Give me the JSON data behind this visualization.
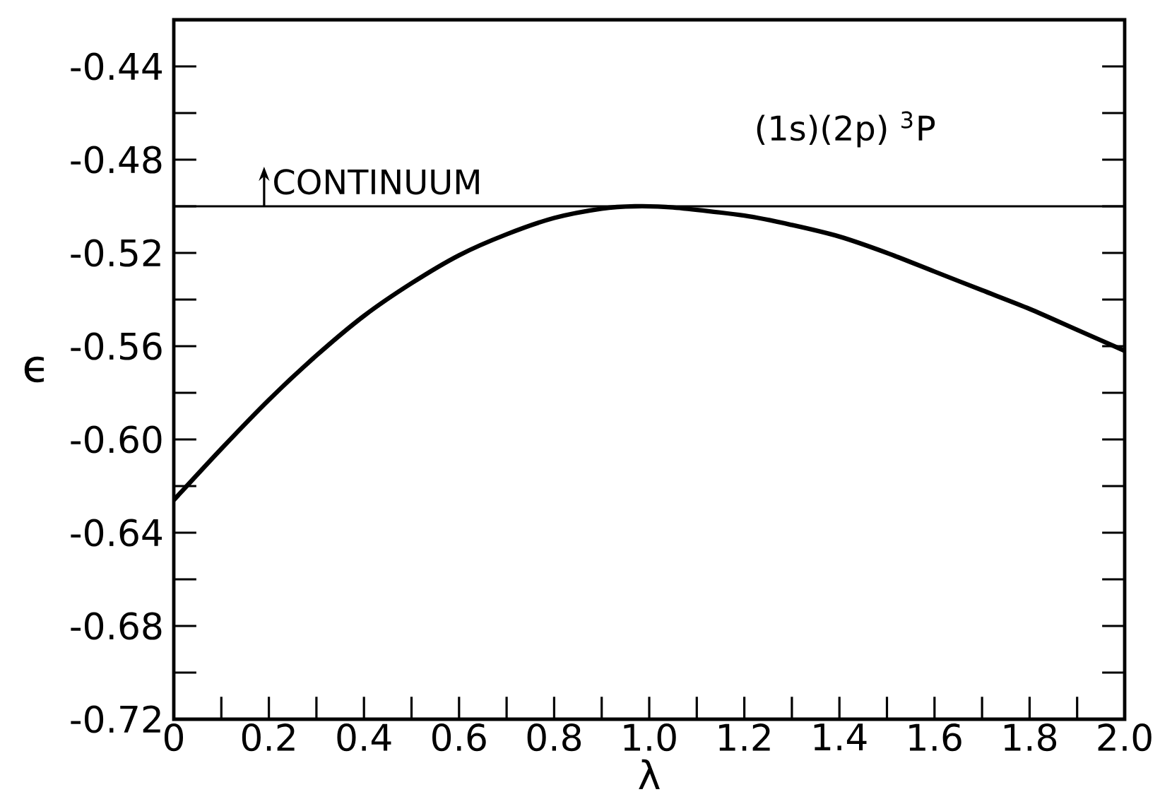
{
  "chart_data": {
    "type": "line",
    "xlabel": "λ",
    "ylabel": "ϵ",
    "x": [
      0,
      0.1,
      0.2,
      0.3,
      0.4,
      0.5,
      0.6,
      0.7,
      0.8,
      0.9,
      0.97,
      1.05,
      1.2,
      1.3,
      1.4,
      1.5,
      1.6,
      1.7,
      1.8,
      1.9,
      2.0
    ],
    "series": [
      {
        "color": "#000000",
        "values": [
          -0.626,
          -0.604,
          -0.583,
          -0.564,
          -0.547,
          -0.533,
          -0.521,
          -0.512,
          -0.505,
          -0.501,
          -0.5,
          -0.5005,
          -0.504,
          -0.508,
          -0.513,
          -0.52,
          -0.528,
          -0.536,
          -0.544,
          -0.553,
          -0.562
        ]
      }
    ],
    "xlim": [
      0,
      2.0
    ],
    "ylim": [
      -0.72,
      -0.42
    ],
    "xticks": [
      0,
      {
        "value": 0.1,
        "label": null
      },
      0.2,
      {
        "value": 0.3,
        "label": null
      },
      0.4,
      {
        "value": 0.5,
        "label": null
      },
      0.6,
      {
        "value": 0.7,
        "label": null
      },
      0.8,
      {
        "value": 0.9,
        "label": null
      },
      {
        "value": 1,
        "label": "1.0"
      },
      {
        "value": 1.1,
        "label": null
      },
      1.2,
      {
        "value": 1.3,
        "label": null
      },
      1.4,
      {
        "value": 1.5,
        "label": null
      },
      1.6,
      {
        "value": 1.7,
        "label": null
      },
      1.8,
      {
        "value": 1.9,
        "label": null
      },
      {
        "value": 2,
        "label": "2.0"
      }
    ],
    "yticks": [
      -0.72,
      {
        "value": -0.7,
        "label": null
      },
      -0.68,
      {
        "value": -0.66,
        "label": null
      },
      -0.64,
      {
        "value": -0.62,
        "label": null
      },
      {
        "value": -0.6,
        "label": "-0.60"
      },
      {
        "value": -0.58,
        "label": null
      },
      -0.56,
      {
        "value": -0.54,
        "label": null
      },
      -0.52,
      {
        "value": -0.5,
        "label": null
      },
      -0.48,
      {
        "value": -0.46,
        "label": null
      },
      -0.44
    ],
    "ref_lines": [
      {
        "axis": "y",
        "value": -0.5,
        "label": "CONTINUUM",
        "color": "#000000"
      }
    ],
    "annotations": [
      "(1s)(2p)  $^{3}$P"
    ],
    "grid": false,
    "marker": "none",
    "line_style": "solid"
  }
}
